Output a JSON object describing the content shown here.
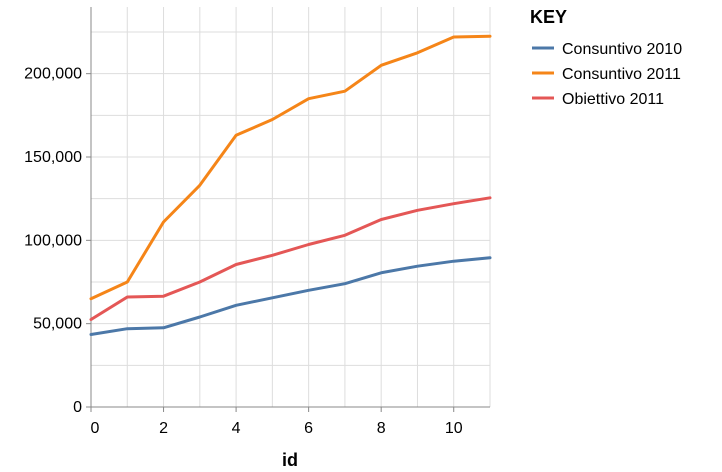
{
  "chart_data": {
    "type": "line",
    "xlabel": "id",
    "ylabel": "",
    "xlim": [
      0,
      11
    ],
    "ylim": [
      0,
      240000
    ],
    "x_ticks": [
      0,
      2,
      4,
      6,
      8,
      10
    ],
    "x_tick_labels": [
      "0",
      "2",
      "4",
      "6",
      "8",
      "10"
    ],
    "y_ticks": [
      0,
      50000,
      100000,
      150000,
      200000
    ],
    "y_tick_labels": [
      "0",
      "50,000",
      "100,000",
      "150,000",
      "200,000"
    ],
    "grid": true,
    "legend": {
      "title": "KEY",
      "placement": "right"
    },
    "x": [
      0,
      1,
      2,
      3,
      4,
      5,
      6,
      7,
      8,
      9,
      10,
      11
    ],
    "series": [
      {
        "name": "Consuntivo 2010",
        "color": "#4c78a8",
        "values": [
          43500,
          47000,
          47500,
          54000,
          61000,
          65500,
          70000,
          74000,
          80500,
          84500,
          87500,
          89500
        ]
      },
      {
        "name": "Consuntivo 2011",
        "color": "#f58518",
        "values": [
          65000,
          75000,
          111000,
          133000,
          163000,
          172500,
          185000,
          189500,
          205000,
          212500,
          222000,
          222500
        ]
      },
      {
        "name": "Obiettivo 2011",
        "color": "#e45756",
        "values": [
          52500,
          66000,
          66500,
          75000,
          85500,
          91000,
          97500,
          103000,
          112500,
          118000,
          122000,
          125500
        ]
      }
    ]
  }
}
